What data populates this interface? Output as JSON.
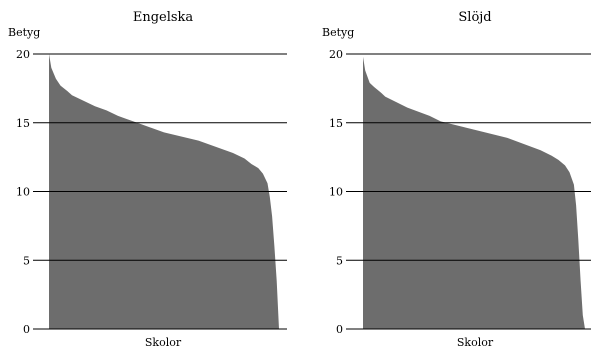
{
  "chart_data": [
    {
      "type": "area",
      "title": "Engelska",
      "xlabel": "Skolor",
      "ylabel": "Betyg",
      "ylim": [
        0,
        20
      ],
      "yticks": [
        0,
        5,
        10,
        15,
        20
      ],
      "grid": "horizontal",
      "fill_color": "#6d6d6d",
      "sorted": "descending",
      "x": [
        0,
        0.01,
        0.03,
        0.05,
        0.08,
        0.1,
        0.15,
        0.2,
        0.25,
        0.3,
        0.35,
        0.4,
        0.45,
        0.5,
        0.55,
        0.6,
        0.65,
        0.7,
        0.75,
        0.8,
        0.85,
        0.88,
        0.91,
        0.93,
        0.95,
        0.96,
        0.97,
        0.98,
        0.99,
        1.0
      ],
      "values": [
        20.0,
        19.0,
        18.2,
        17.7,
        17.3,
        17.0,
        16.6,
        16.2,
        15.9,
        15.5,
        15.2,
        14.9,
        14.6,
        14.3,
        14.1,
        13.9,
        13.7,
        13.4,
        13.1,
        12.8,
        12.4,
        12.0,
        11.7,
        11.3,
        10.6,
        9.6,
        8.2,
        6.0,
        3.5,
        0.0
      ]
    },
    {
      "type": "area",
      "title": "Slöjd",
      "xlabel": "Skolor",
      "ylabel": "Betyg",
      "ylim": [
        0,
        20
      ],
      "yticks": [
        0,
        5,
        10,
        15,
        20
      ],
      "grid": "horizontal",
      "fill_color": "#6d6d6d",
      "sorted": "descending",
      "x": [
        0,
        0.01,
        0.03,
        0.05,
        0.08,
        0.1,
        0.15,
        0.2,
        0.25,
        0.3,
        0.35,
        0.4,
        0.45,
        0.5,
        0.55,
        0.6,
        0.65,
        0.7,
        0.75,
        0.8,
        0.85,
        0.88,
        0.91,
        0.93,
        0.95,
        0.96,
        0.97,
        0.98,
        0.99,
        1.0
      ],
      "values": [
        19.8,
        18.8,
        17.9,
        17.6,
        17.2,
        16.9,
        16.5,
        16.1,
        15.8,
        15.5,
        15.1,
        14.9,
        14.7,
        14.5,
        14.3,
        14.1,
        13.9,
        13.6,
        13.3,
        13.0,
        12.6,
        12.3,
        11.9,
        11.4,
        10.5,
        9.0,
        6.5,
        3.5,
        1.0,
        0.0
      ]
    }
  ]
}
